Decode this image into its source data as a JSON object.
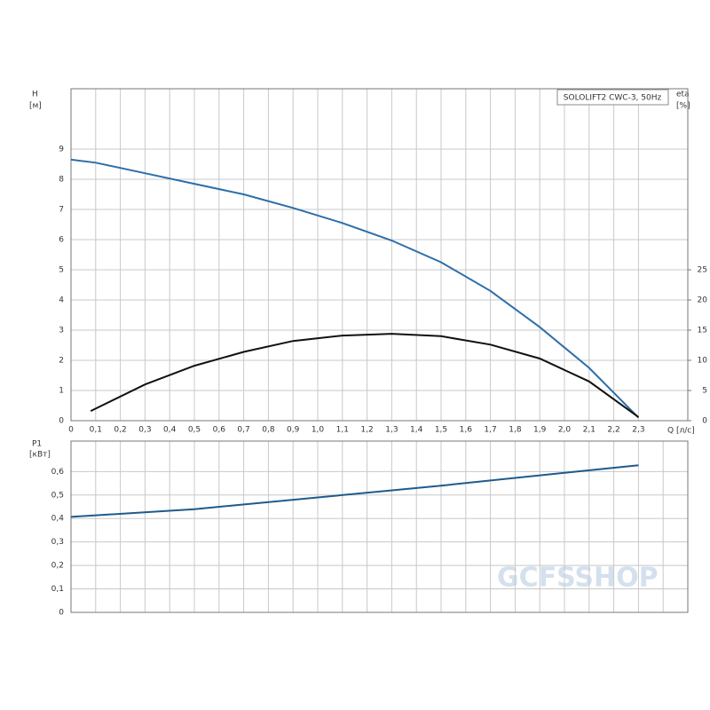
{
  "chart_data": [
    {
      "type": "line",
      "title": "SOLOLIFT2 CWC-3, 50Hz",
      "y_label": "H",
      "y_unit": "[м]",
      "y2_label": "eta",
      "y2_unit": "[%]",
      "x_label": "Q [л/с]",
      "xlim": [
        0,
        2.5
      ],
      "xticks": [
        0,
        {
          "value": 0.1,
          "label": "0,1"
        },
        {
          "value": 0.2,
          "label": "0,2"
        },
        {
          "value": 0.3,
          "label": "0,3"
        },
        {
          "value": 0.4,
          "label": "0,4"
        },
        {
          "value": 0.5,
          "label": "0,5"
        },
        {
          "value": 0.6,
          "label": "0,6"
        },
        {
          "value": 0.7,
          "label": "0,7"
        },
        {
          "value": 0.8,
          "label": "0,8"
        },
        {
          "value": 0.9,
          "label": "0,9"
        },
        {
          "value": 1.0,
          "label": "1,0"
        },
        {
          "value": 1.1,
          "label": "1,1"
        },
        {
          "value": 1.2,
          "label": "1,2"
        },
        {
          "value": 1.3,
          "label": "1,3"
        },
        {
          "value": 1.4,
          "label": "1,4"
        },
        {
          "value": 1.5,
          "label": "1,5"
        },
        {
          "value": 1.6,
          "label": "1,6"
        },
        {
          "value": 1.7,
          "label": "1,7"
        },
        {
          "value": 1.8,
          "label": "1,8"
        },
        {
          "value": 1.9,
          "label": "1,9"
        },
        {
          "value": 2.0,
          "label": "2,0"
        },
        {
          "value": 2.1,
          "label": "2,1"
        },
        {
          "value": 2.2,
          "label": "2,2"
        },
        {
          "value": 2.3,
          "label": "2,3"
        }
      ],
      "ylim": [
        0,
        11
      ],
      "yticks": [
        0,
        1,
        2,
        3,
        4,
        5,
        6,
        7,
        8,
        9
      ],
      "y2lim": [
        0,
        55
      ],
      "y2ticks": [
        0,
        5,
        10,
        15,
        20,
        25
      ],
      "grid": true,
      "series": [
        {
          "color": "#2c6ea8",
          "x": [
            0,
            0.1,
            0.3,
            0.5,
            0.7,
            0.9,
            1.1,
            1.3,
            1.5,
            1.7,
            1.9,
            2.1,
            2.3
          ],
          "values": [
            8.65,
            8.55,
            8.2,
            7.85,
            7.5,
            7.05,
            6.55,
            5.97,
            5.25,
            4.3,
            3.1,
            1.75,
            0.1
          ]
        },
        {
          "color": "#111111",
          "axis": "y2",
          "x": [
            0.08,
            0.3,
            0.5,
            0.7,
            0.9,
            1.1,
            1.3,
            1.5,
            1.7,
            1.9,
            2.1,
            2.3
          ],
          "values": [
            1.6,
            6.0,
            9.1,
            11.4,
            13.2,
            14.1,
            14.4,
            14.0,
            12.6,
            10.3,
            6.5,
            0.6
          ]
        }
      ]
    },
    {
      "type": "line",
      "y_label": "P1",
      "y_unit": "[кВт]",
      "xlim": [
        0,
        2.5
      ],
      "xticks": [
        0,
        0.1,
        0.2,
        0.3,
        0.4,
        0.5,
        0.6,
        0.7,
        0.8,
        0.9,
        1.0,
        1.1,
        1.2,
        1.3,
        1.4,
        1.5,
        1.6,
        1.7,
        1.8,
        1.9,
        2.0,
        2.1,
        2.2,
        2.3,
        2.4
      ],
      "ylim": [
        0,
        0.73
      ],
      "yticks": [
        0,
        {
          "value": 0.1,
          "label": "0,1"
        },
        {
          "value": 0.2,
          "label": "0,2"
        },
        {
          "value": 0.3,
          "label": "0,3"
        },
        {
          "value": 0.4,
          "label": "0,4"
        },
        {
          "value": 0.5,
          "label": "0,5"
        },
        {
          "value": 0.6,
          "label": "0,6"
        }
      ],
      "grid": true,
      "series": [
        {
          "color": "#1f5a8c",
          "x": [
            0,
            0.5,
            1.0,
            1.5,
            2.0,
            2.3
          ],
          "values": [
            0.407,
            0.44,
            0.49,
            0.54,
            0.595,
            0.627
          ]
        }
      ]
    },
    {
      "type": "watermark",
      "text": "GCFSSHOP"
    }
  ]
}
